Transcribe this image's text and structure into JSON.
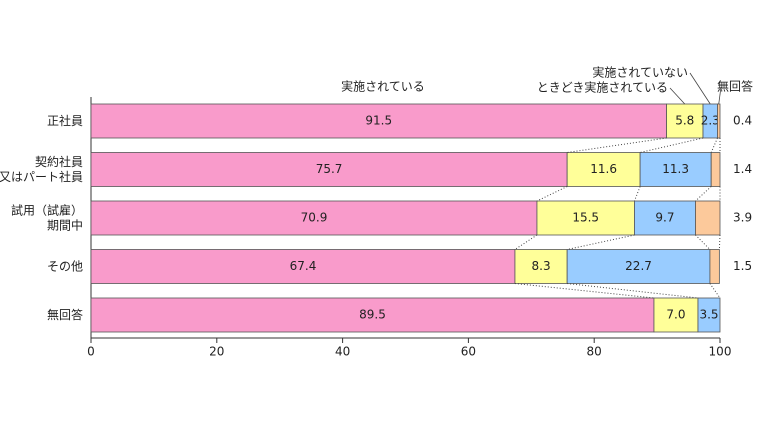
{
  "chart_data": {
    "type": "stacked-barh",
    "categories": [
      "正社員",
      "契約社員\n又はパート社員",
      "試用（試雇）\n期間中",
      "その他",
      "無回答"
    ],
    "series": [
      {
        "name": "実施されている",
        "color": "#f99bcb",
        "values": [
          91.5,
          75.7,
          70.9,
          67.4,
          89.5
        ]
      },
      {
        "name": "ときどき実施されている",
        "color": "#ffff99",
        "values": [
          5.8,
          11.6,
          15.5,
          8.3,
          7.0
        ],
        "value_labels": [
          "5.8",
          "11.6",
          "15.5",
          "8.3",
          "7.0"
        ]
      },
      {
        "name": "実施されていない",
        "color": "#99ccff",
        "values": [
          2.3,
          11.3,
          9.7,
          22.7,
          3.5
        ]
      },
      {
        "name": "無回答",
        "color": "#fcc99b",
        "values": [
          0.4,
          1.4,
          3.9,
          1.5,
          null
        ]
      }
    ],
    "xlim": [
      0,
      100
    ],
    "xticks": [
      0,
      20,
      40,
      60,
      80,
      100
    ]
  }
}
